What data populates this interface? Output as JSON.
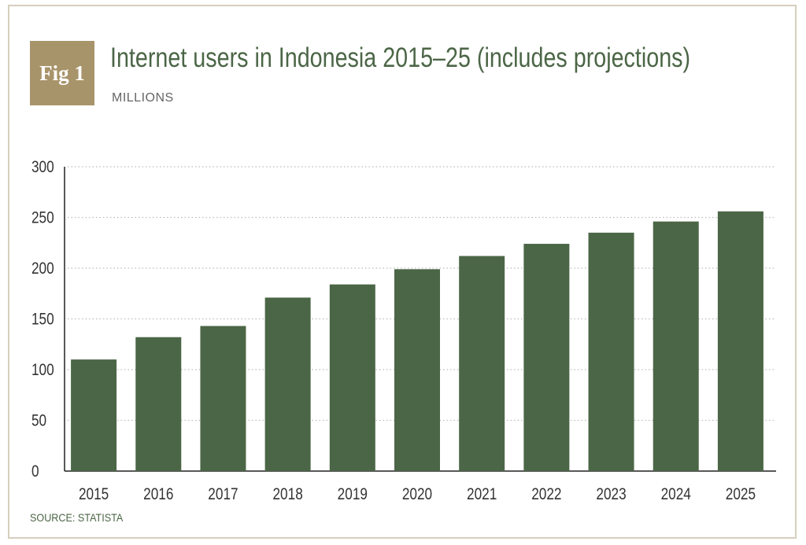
{
  "figure": {
    "badge": "Fig 1",
    "title": "Internet users in Indonesia 2015–25 (includes projections)",
    "subtitle": "MILLIONS",
    "source": "SOURCE: STATISTA"
  },
  "colors": {
    "bar": "#4b6646",
    "badge": "#a8946a",
    "title": "#4b6646",
    "grid": "#bbbbbb",
    "axis": "#222222"
  },
  "chart_data": {
    "type": "bar",
    "categories": [
      "2015",
      "2016",
      "2017",
      "2018",
      "2019",
      "2020",
      "2021",
      "2022",
      "2023",
      "2024",
      "2025"
    ],
    "series": [
      {
        "values": [
          110,
          132,
          143,
          171,
          184,
          199,
          212,
          224,
          235,
          246,
          256
        ]
      }
    ],
    "ylim": [
      0,
      300
    ],
    "yticks": [
      "0",
      "50",
      "100",
      "150",
      "200",
      "250",
      "300"
    ],
    "grid": true,
    "legend": "none"
  }
}
